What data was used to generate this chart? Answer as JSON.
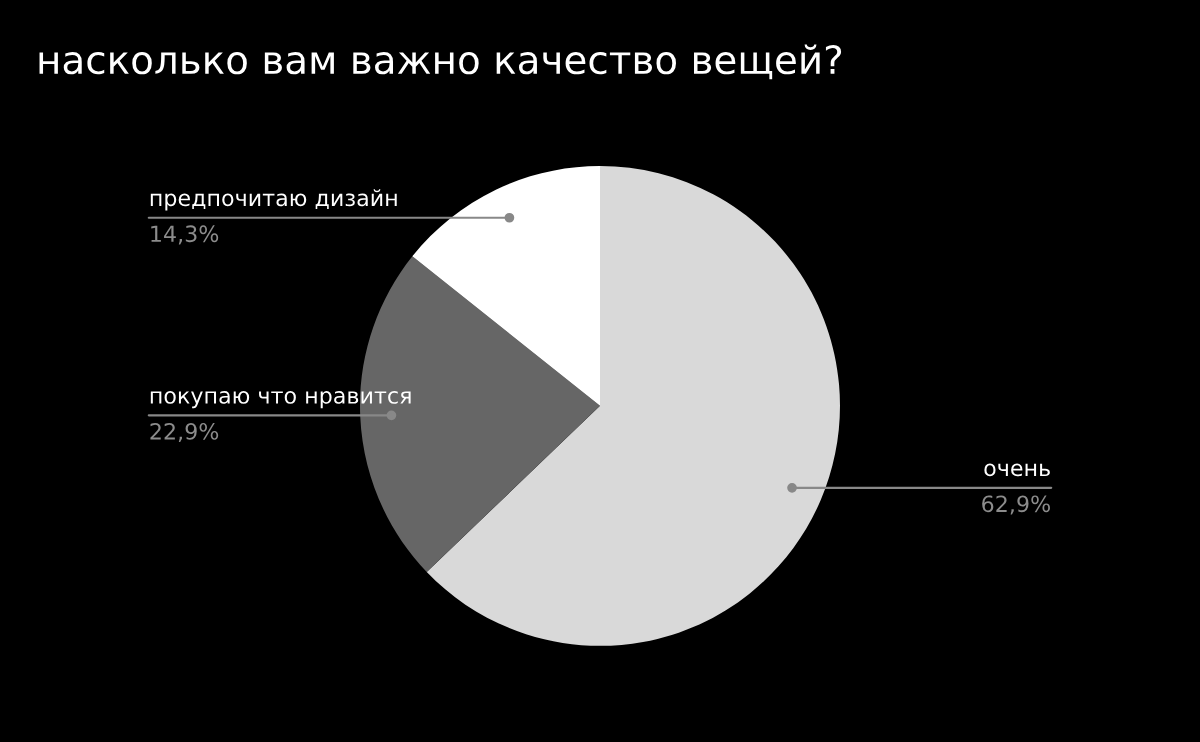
{
  "chart_data": {
    "type": "pie",
    "title": "насколько вам важно качество вещей?",
    "categories": [
      "очень",
      "покупаю что нравится",
      "предпочитаю дизайн"
    ],
    "values": [
      62.9,
      22.9,
      14.3
    ],
    "value_labels": [
      "62,9%",
      "22,9%",
      "14,3%"
    ],
    "colors": [
      "#d9d9d9",
      "#666666",
      "#ffffff"
    ],
    "legend": false
  }
}
